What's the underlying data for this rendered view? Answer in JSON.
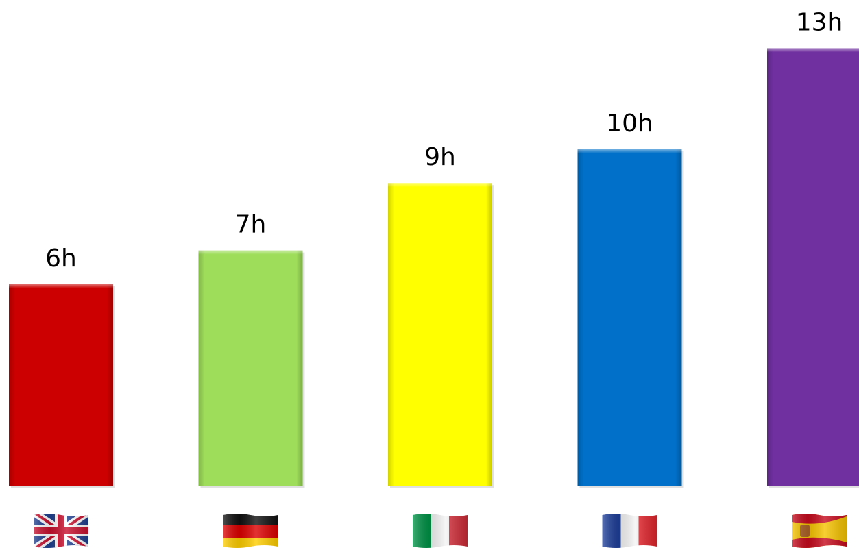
{
  "chart_data": {
    "type": "bar",
    "title": "",
    "xlabel": "",
    "ylabel": "",
    "categories": [
      "UK",
      "Germany",
      "Italy",
      "France",
      "Spain"
    ],
    "values": [
      6,
      7,
      9,
      10,
      13
    ],
    "value_labels": [
      "6h",
      "7h",
      "9h",
      "10h",
      "13h"
    ],
    "unit": "h",
    "ylim": [
      0,
      13
    ],
    "grid": false,
    "legend": "none",
    "category_icons": [
      "uk-flag-icon",
      "germany-flag-icon",
      "italy-flag-icon",
      "france-flag-icon",
      "spain-flag-icon"
    ],
    "colors": [
      "#cc0000",
      "#9edd5a",
      "#ffff00",
      "#0070c8",
      "#7030a0"
    ]
  }
}
